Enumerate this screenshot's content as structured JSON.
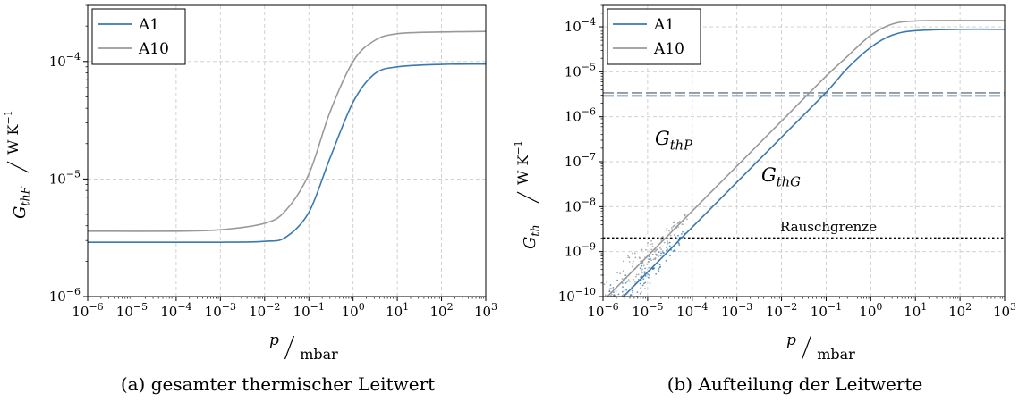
{
  "chart_data": [
    {
      "type": "line",
      "caption": "(a) gesamter thermischer Leitwert",
      "xlabel_var": "p",
      "xlabel_unit": "mbar",
      "ylabel_var": "G",
      "ylabel_sub": "thF",
      "ylabel_unit": "W K",
      "ylabel_exp": "−1",
      "xscale": "log",
      "yscale": "log",
      "xlim": [
        1e-06,
        1000.0
      ],
      "ylim": [
        1e-06,
        0.0003
      ],
      "xticks": [
        -6,
        -5,
        -4,
        -3,
        -2,
        -1,
        0,
        1,
        2,
        3
      ],
      "yticks": [
        -6,
        -5,
        -4
      ],
      "grid": true,
      "legend": "top-left",
      "series": [
        {
          "name": "A1",
          "color": "#3a78b0",
          "x": [
            1e-06,
            0.0001,
            0.001,
            0.01,
            0.03,
            0.1,
            0.3,
            1,
            3,
            10,
            100,
            1000
          ],
          "y": [
            2.9e-06,
            2.9e-06,
            2.9e-06,
            2.95e-06,
            3.2e-06,
            5.2e-06,
            1.5e-05,
            4.5e-05,
            7.8e-05,
            9e-05,
            9.45e-05,
            9.5e-05
          ]
        },
        {
          "name": "A10",
          "color": "#999999",
          "x": [
            1e-06,
            0.0001,
            0.001,
            0.01,
            0.03,
            0.1,
            0.3,
            1,
            3,
            10,
            100,
            1000
          ],
          "y": [
            3.6e-06,
            3.6e-06,
            3.7e-06,
            4.2e-06,
            5.4e-06,
            1.1e-05,
            3.7e-05,
            0.0001,
            0.00015,
            0.000172,
            0.000178,
            0.00018
          ]
        }
      ]
    },
    {
      "type": "line",
      "caption": "(b) Aufteilung der Leitwerte",
      "xlabel_var": "p",
      "xlabel_unit": "mbar",
      "ylabel_var": "G",
      "ylabel_sub": "th",
      "ylabel_unit": "W K",
      "ylabel_exp": "−1",
      "xscale": "log",
      "yscale": "log",
      "xlim": [
        1e-06,
        1000.0
      ],
      "ylim": [
        1e-10,
        0.0003
      ],
      "xticks": [
        -6,
        -5,
        -4,
        -3,
        -2,
        -1,
        0,
        1,
        2,
        3
      ],
      "yticks": [
        -10,
        -9,
        -8,
        -7,
        -6,
        -5,
        -4
      ],
      "grid": true,
      "legend": "top-left",
      "series": [
        {
          "name": "A1",
          "color": "#3a78b0",
          "x": [
            1e-06,
            1e-05,
            0.0001,
            0.001,
            0.01,
            0.1,
            0.3,
            1,
            3,
            10,
            100,
            1000
          ],
          "y": [
            3.5e-11,
            3.5e-10,
            3.5e-09,
            3.5e-08,
            3.5e-07,
            3.5e-06,
            1.2e-05,
            3.5e-05,
            6.5e-05,
            8.2e-05,
            8.8e-05,
            8.8e-05
          ]
        },
        {
          "name": "A10",
          "color": "#999999",
          "x": [
            1e-06,
            1e-05,
            0.0001,
            0.001,
            0.01,
            0.1,
            0.3,
            1,
            3,
            10,
            100,
            1000
          ],
          "y": [
            8e-11,
            8e-10,
            8e-09,
            8e-08,
            8e-07,
            8e-06,
            2.2e-05,
            6.5e-05,
            0.000115,
            0.000135,
            0.000138,
            0.000138
          ]
        }
      ],
      "hlines": [
        {
          "y": 3.4e-06,
          "color": "#999999",
          "style": "dashed"
        },
        {
          "y": 2.9e-06,
          "color": "#3a78b0",
          "style": "dashed"
        },
        {
          "y": 2e-09,
          "color": "#000000",
          "style": "dotted"
        }
      ],
      "annotations": {
        "gthp": {
          "var": "G",
          "sub": "thP"
        },
        "gthg": {
          "var": "G",
          "sub": "thG"
        },
        "rausch": "Rauschgrenze"
      }
    }
  ]
}
